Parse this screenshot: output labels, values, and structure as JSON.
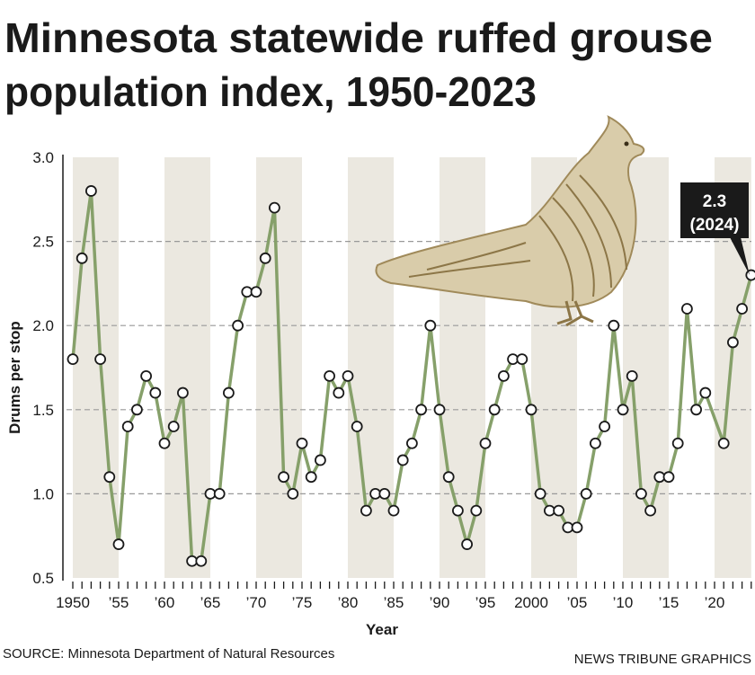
{
  "title_line1": "Minnesota statewide ruffed grouse",
  "title_line2": "population index, 1950-2023",
  "source": "SOURCE: Minnesota Department of Natural Resources",
  "credit": "NEWS TRIBUNE GRAPHICS",
  "callout": {
    "value": "2.3",
    "year": "(2024)"
  },
  "colors": {
    "line": "#86a06a",
    "band": "#ebe8e0",
    "grid": "#999999",
    "callout_bg": "#1a1a1a",
    "bird": "#a08a5a"
  },
  "chart_data": {
    "type": "line",
    "title": "Minnesota statewide ruffed grouse population index, 1950-2023",
    "xlabel": "Year",
    "ylabel": "Drums per stop",
    "ylim": [
      0.5,
      3.0
    ],
    "xlim": [
      1950,
      2024
    ],
    "yticks": [
      "0.5",
      "1.0",
      "1.5",
      "2.0",
      "2.5",
      "3.0"
    ],
    "ytick_values": [
      0.5,
      1.0,
      1.5,
      2.0,
      2.5,
      3.0
    ],
    "xticks": [
      {
        "year": 1950,
        "label": "1950"
      },
      {
        "year": 1955,
        "label": "’55"
      },
      {
        "year": 1960,
        "label": "’60"
      },
      {
        "year": 1965,
        "label": "’65"
      },
      {
        "year": 1970,
        "label": "’70"
      },
      {
        "year": 1975,
        "label": "’75"
      },
      {
        "year": 1980,
        "label": "’80"
      },
      {
        "year": 1985,
        "label": "’85"
      },
      {
        "year": 1990,
        "label": "’90"
      },
      {
        "year": 1995,
        "label": "’95"
      },
      {
        "year": 2000,
        "label": "2000"
      },
      {
        "year": 2005,
        "label": "’05"
      },
      {
        "year": 2010,
        "label": "’10"
      },
      {
        "year": 2015,
        "label": "’15"
      },
      {
        "year": 2020,
        "label": "’20"
      }
    ],
    "grid": "horizontal dashed",
    "series": [
      {
        "name": "Drums per stop",
        "x": [
          1950,
          1951,
          1952,
          1953,
          1954,
          1955,
          1956,
          1957,
          1958,
          1959,
          1960,
          1961,
          1962,
          1963,
          1964,
          1965,
          1966,
          1967,
          1968,
          1969,
          1970,
          1971,
          1972,
          1973,
          1974,
          1975,
          1976,
          1977,
          1978,
          1979,
          1980,
          1981,
          1982,
          1983,
          1984,
          1985,
          1986,
          1987,
          1988,
          1989,
          1990,
          1991,
          1992,
          1993,
          1994,
          1995,
          1996,
          1997,
          1998,
          1999,
          2000,
          2001,
          2002,
          2003,
          2004,
          2005,
          2006,
          2007,
          2008,
          2009,
          2010,
          2011,
          2012,
          2013,
          2014,
          2015,
          2016,
          2017,
          2018,
          2019,
          2021,
          2022,
          2023,
          2024
        ],
        "y": [
          1.8,
          2.4,
          2.8,
          1.8,
          1.1,
          0.7,
          1.4,
          1.5,
          1.7,
          1.6,
          1.3,
          1.4,
          1.6,
          0.6,
          0.6,
          1.0,
          1.0,
          1.6,
          2.0,
          2.2,
          2.2,
          2.4,
          2.7,
          1.1,
          1.0,
          1.3,
          1.1,
          1.2,
          1.7,
          1.6,
          1.7,
          1.4,
          0.9,
          1.0,
          1.0,
          0.9,
          1.2,
          1.3,
          1.5,
          2.0,
          1.5,
          1.1,
          0.9,
          0.7,
          0.9,
          1.3,
          1.5,
          1.7,
          1.8,
          1.8,
          1.5,
          1.0,
          0.9,
          0.9,
          0.8,
          0.8,
          1.0,
          1.3,
          1.4,
          2.0,
          1.5,
          1.7,
          1.0,
          0.9,
          1.1,
          1.1,
          1.3,
          2.1,
          1.5,
          1.6,
          1.3,
          1.9,
          2.1,
          2.3
        ]
      }
    ]
  }
}
